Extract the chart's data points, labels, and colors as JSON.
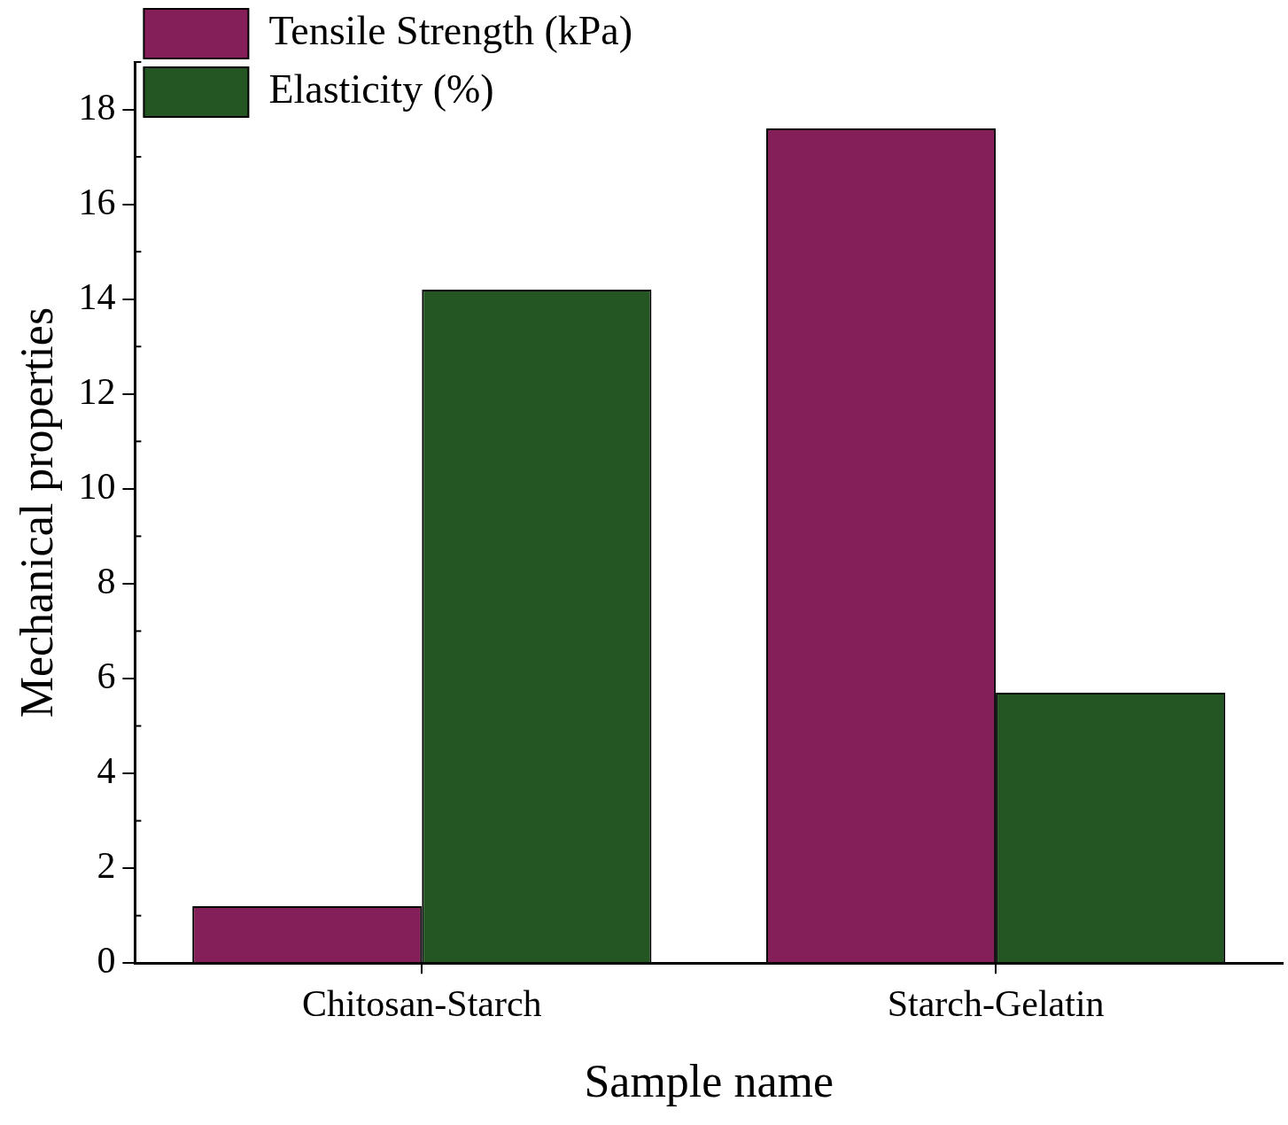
{
  "chart_data": {
    "type": "bar",
    "xlabel": "Sample name",
    "ylabel": "Mechanical properties",
    "categories": [
      "Chitosan-Starch",
      "Starch-Gelatin"
    ],
    "series": [
      {
        "name": "Tensile Strength (kPa)",
        "color": "#841f5a",
        "values": [
          1.2,
          17.6
        ]
      },
      {
        "name": "Elasticity (%)",
        "color": "#245623",
        "values": [
          14.2,
          5.7
        ]
      }
    ],
    "ylim": [
      0,
      19
    ],
    "yticks": [
      0,
      2,
      4,
      6,
      8,
      10,
      12,
      14,
      16,
      18
    ],
    "grid": false,
    "legend": "top left"
  }
}
